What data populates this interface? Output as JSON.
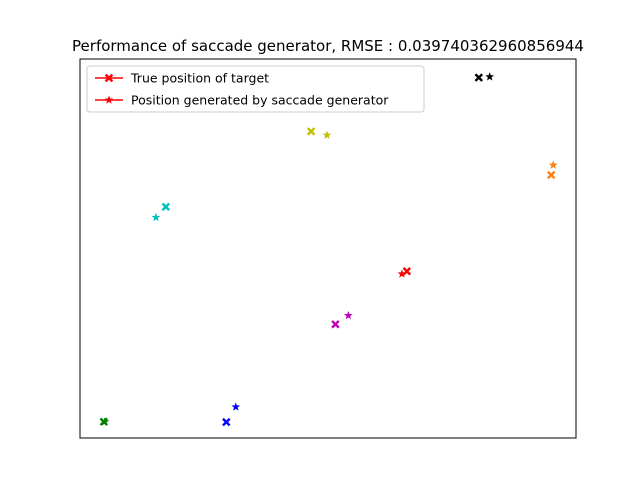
{
  "chart_data": {
    "type": "scatter",
    "title": "Performance of saccade generator, RMSE : 0.039740362960856944",
    "xlabel": "",
    "ylabel": "",
    "xlim": [
      0,
      1
    ],
    "ylim": [
      0,
      1
    ],
    "grid": false,
    "legend_position": "top-left",
    "series": [
      {
        "name": "True position of target",
        "marker": "X",
        "legend_color": "#ff0000"
      },
      {
        "name": "Position generated by saccade generator",
        "marker": "star",
        "legend_color": "#ff0000"
      }
    ],
    "pairs": [
      {
        "color": "#000000",
        "true": [
          0.804,
          0.951
        ],
        "generated": [
          0.826,
          0.953
        ]
      },
      {
        "color": "#bfbf00",
        "true": [
          0.466,
          0.809
        ],
        "generated": [
          0.498,
          0.799
        ]
      },
      {
        "color": "#ff7f0e",
        "true": [
          0.95,
          0.694
        ],
        "generated": [
          0.954,
          0.72
        ]
      },
      {
        "color": "#00bfbf",
        "true": [
          0.173,
          0.61
        ],
        "generated": [
          0.153,
          0.582
        ]
      },
      {
        "color": "#ff0000",
        "true": [
          0.659,
          0.44
        ],
        "generated": [
          0.649,
          0.433
        ]
      },
      {
        "color": "#bf00bf",
        "true": [
          0.515,
          0.3
        ],
        "generated": [
          0.541,
          0.323
        ]
      },
      {
        "color": "#0000ff",
        "true": [
          0.295,
          0.042
        ],
        "generated": [
          0.314,
          0.082
        ]
      },
      {
        "color": "#008000",
        "true": [
          0.048,
          0.043
        ],
        "generated": [
          0.05,
          0.043
        ]
      }
    ]
  }
}
